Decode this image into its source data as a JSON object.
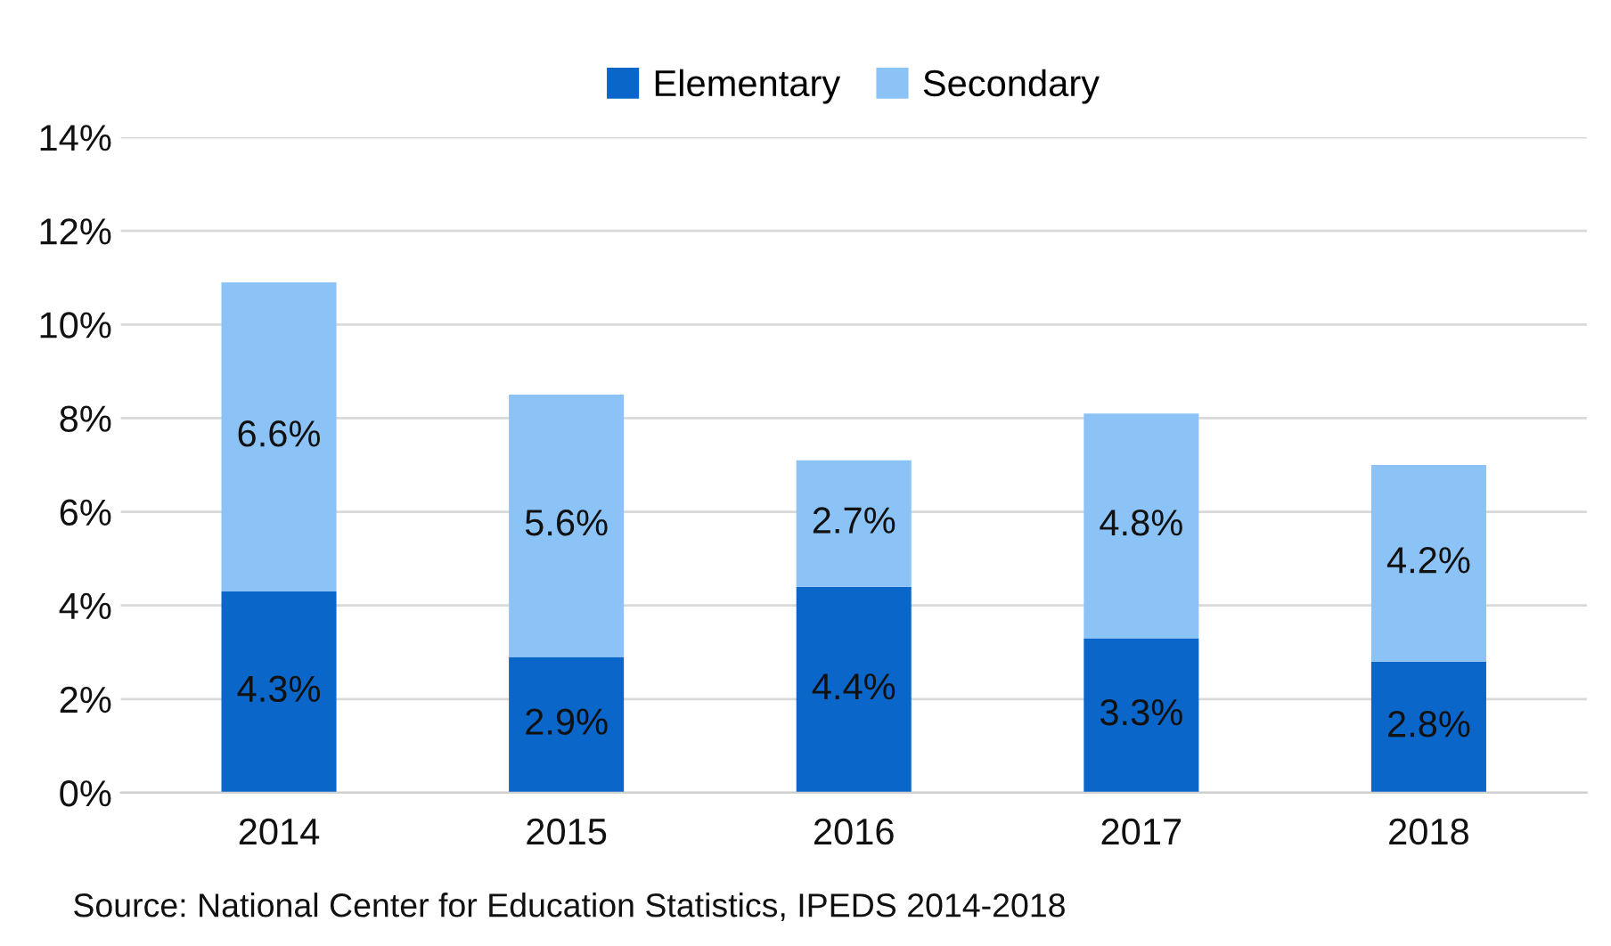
{
  "chart_data": {
    "type": "bar",
    "stacked": true,
    "categories": [
      "2014",
      "2015",
      "2016",
      "2017",
      "2018"
    ],
    "series": [
      {
        "name": "Elementary",
        "color": "#0a66c8",
        "values": [
          4.3,
          2.9,
          4.4,
          3.3,
          2.8
        ],
        "value_labels": [
          "4.3%",
          "2.9%",
          "4.4%",
          "3.3%",
          "2.8%"
        ]
      },
      {
        "name": "Secondary",
        "color": "#8cc3f7",
        "values": [
          6.6,
          5.6,
          2.7,
          4.8,
          4.2
        ],
        "value_labels": [
          "6.6%",
          "5.6%",
          "2.7%",
          "4.8%",
          "4.2%"
        ]
      }
    ],
    "ylim": [
      0,
      14
    ],
    "yticks": [
      {
        "value": 0,
        "label": "0%"
      },
      {
        "value": 2,
        "label": "2%"
      },
      {
        "value": 4,
        "label": "4%"
      },
      {
        "value": 6,
        "label": "6%"
      },
      {
        "value": 8,
        "label": "8%"
      },
      {
        "value": 10,
        "label": "10%"
      },
      {
        "value": 12,
        "label": "12%"
      },
      {
        "value": 14,
        "label": "14%"
      }
    ],
    "grid": "y",
    "legend": "top",
    "annotations": [
      "Source: National Center for Education Statistics, IPEDS 2014-2018"
    ]
  }
}
